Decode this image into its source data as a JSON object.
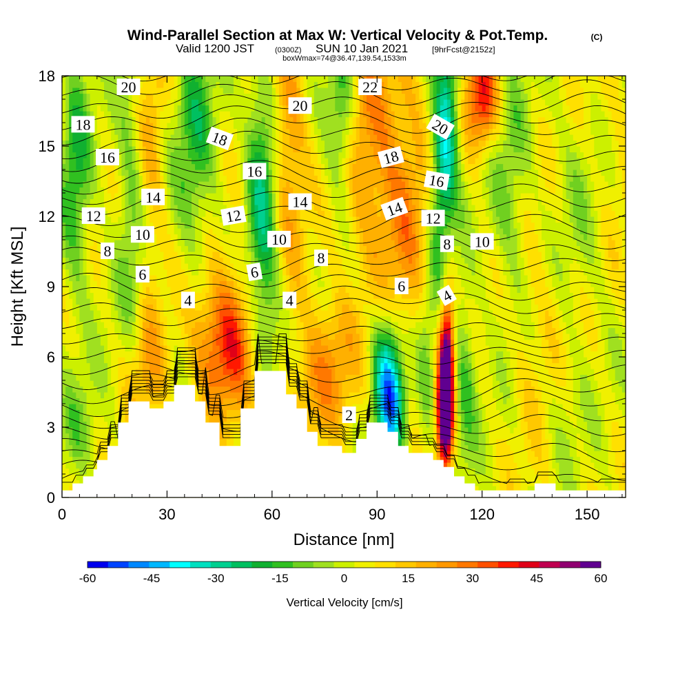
{
  "header": {
    "title": "Wind-Parallel Section at Max W: Vertical Velocity & Pot.Temp.",
    "copyright": "(C)",
    "valid_prefix": "Valid 1200 JST",
    "valid_utc": "(0300Z)",
    "valid_date": "SUN 10 Jan 2021",
    "forecast": "[9hrFcst@2152z]",
    "box": "boxWmax=74@36.47,139.54,1533m"
  },
  "chart_data": {
    "type": "heatmap",
    "title": "Wind-Parallel Section at Max W: Vertical Velocity & Pot.Temp.",
    "xlabel": "Distance [nm]",
    "ylabel": "Height [Kft MSL]",
    "xlim": [
      0,
      161
    ],
    "ylim": [
      0,
      18
    ],
    "xticks": [
      "0",
      "30",
      "60",
      "90",
      "120",
      "150"
    ],
    "yticks": [
      "0",
      "3",
      "6",
      "9",
      "12",
      "15",
      "18"
    ],
    "colorbar": {
      "label": "Vertical Velocity [cm/s]",
      "ticks": [
        "-60",
        "-45",
        "-30",
        "-15",
        "0",
        "15",
        "30",
        "45",
        "60"
      ],
      "range": [
        -60,
        60
      ],
      "step": 5,
      "colors": [
        "#0000ee",
        "#0044ff",
        "#0088ff",
        "#00b8ff",
        "#00ffff",
        "#00e0c0",
        "#00d090",
        "#00c060",
        "#10b030",
        "#30c020",
        "#70d020",
        "#a0e020",
        "#ccf000",
        "#f0f000",
        "#ffe000",
        "#ffc800",
        "#ffb000",
        "#ff9800",
        "#ff7800",
        "#ff5000",
        "#ff1800",
        "#e00018",
        "#c00050",
        "#900070",
        "#600090"
      ]
    },
    "terrain": [
      [
        0,
        0.3
      ],
      [
        3,
        0.3
      ],
      [
        3,
        0.6
      ],
      [
        6,
        0.6
      ],
      [
        6,
        0.9
      ],
      [
        9,
        0.9
      ],
      [
        9,
        1.2
      ],
      [
        10,
        1.2
      ],
      [
        10,
        1.6
      ],
      [
        13,
        1.6
      ],
      [
        13,
        2.2
      ],
      [
        16,
        2.2
      ],
      [
        16,
        3.2
      ],
      [
        19,
        3.2
      ],
      [
        19,
        4.1
      ],
      [
        25,
        4.1
      ],
      [
        25,
        3.8
      ],
      [
        29,
        3.8
      ],
      [
        29,
        4.1
      ],
      [
        32,
        4.1
      ],
      [
        32,
        4.8
      ],
      [
        38,
        4.8
      ],
      [
        38,
        4.1
      ],
      [
        41,
        4.1
      ],
      [
        41,
        3.2
      ],
      [
        45,
        3.2
      ],
      [
        45,
        2.2
      ],
      [
        51,
        2.2
      ],
      [
        51,
        3.8
      ],
      [
        55,
        3.8
      ],
      [
        55,
        5.4
      ],
      [
        64,
        5.4
      ],
      [
        64,
        4.4
      ],
      [
        67,
        4.4
      ],
      [
        67,
        3.8
      ],
      [
        70,
        3.8
      ],
      [
        70,
        2.8
      ],
      [
        73,
        2.8
      ],
      [
        73,
        2.2
      ],
      [
        80,
        2.2
      ],
      [
        80,
        1.9
      ],
      [
        84,
        1.9
      ],
      [
        84,
        2.5
      ],
      [
        87,
        2.5
      ],
      [
        87,
        3.2
      ],
      [
        93,
        3.2
      ],
      [
        93,
        2.8
      ],
      [
        96,
        2.8
      ],
      [
        96,
        2.2
      ],
      [
        99,
        2.2
      ],
      [
        99,
        1.9
      ],
      [
        106,
        1.9
      ],
      [
        106,
        1.6
      ],
      [
        109,
        1.6
      ],
      [
        109,
        1.3
      ],
      [
        112,
        1.3
      ],
      [
        112,
        0.9
      ],
      [
        115,
        0.9
      ],
      [
        115,
        0.6
      ],
      [
        118,
        0.6
      ],
      [
        118,
        0.3
      ],
      [
        135,
        0.3
      ],
      [
        135,
        0.6
      ],
      [
        141,
        0.6
      ],
      [
        141,
        0.3
      ],
      [
        161,
        0.3
      ]
    ],
    "updrafts": [
      {
        "x": 110,
        "y": 5.5,
        "w": 60,
        "sx": 1.5,
        "sy": 2.6
      },
      {
        "x": 109,
        "y": 3.5,
        "w": 45,
        "sx": 1.5,
        "sy": 1.8
      },
      {
        "x": 44,
        "y": 6.5,
        "w": 30,
        "sx": 5,
        "sy": 2
      },
      {
        "x": 50,
        "y": 7,
        "w": 18,
        "sx": 4,
        "sy": 2.5
      },
      {
        "x": 77,
        "y": 6,
        "w": 20,
        "sx": 5,
        "sy": 2
      },
      {
        "x": 70,
        "y": 4.5,
        "w": 14,
        "sx": 4,
        "sy": 1.8
      },
      {
        "x": 120,
        "y": 17,
        "w": 38,
        "sx": 3.5,
        "sy": 1.6
      },
      {
        "x": 97,
        "y": 13,
        "w": 22,
        "sx": 6,
        "sy": 5
      },
      {
        "x": 86,
        "y": 15,
        "w": 18,
        "sx": 5,
        "sy": 4
      },
      {
        "x": 65,
        "y": 15,
        "w": 22,
        "sx": 3.5,
        "sy": 4
      },
      {
        "x": 25,
        "y": 14,
        "w": 15,
        "sx": 3,
        "sy": 5
      },
      {
        "x": 24,
        "y": 5,
        "w": 15,
        "sx": 4,
        "sy": 2
      },
      {
        "x": 138,
        "y": 7,
        "w": 10,
        "sx": 8,
        "sy": 4
      },
      {
        "x": 155,
        "y": 15,
        "w": 8,
        "sx": 8,
        "sy": 4
      }
    ],
    "downdrafts": [
      {
        "x": 94,
        "y": 4,
        "w": -45,
        "sx": 2.8,
        "sy": 1.8
      },
      {
        "x": 92,
        "y": 6,
        "w": -24,
        "sx": 3,
        "sy": 2
      },
      {
        "x": 110,
        "y": 16,
        "w": -38,
        "sx": 2.5,
        "sy": 2.5
      },
      {
        "x": 108,
        "y": 12,
        "w": -22,
        "sx": 2.5,
        "sy": 3
      },
      {
        "x": 115,
        "y": 5,
        "w": -18,
        "sx": 2.5,
        "sy": 2.5
      },
      {
        "x": 104,
        "y": 5,
        "w": -14,
        "sx": 2,
        "sy": 2.5
      },
      {
        "x": 57,
        "y": 13,
        "w": -28,
        "sx": 3,
        "sy": 4
      },
      {
        "x": 60,
        "y": 7.5,
        "w": -12,
        "sx": 3,
        "sy": 2
      },
      {
        "x": 80,
        "y": 16.5,
        "w": -26,
        "sx": 3,
        "sy": 2.5
      },
      {
        "x": 38,
        "y": 15.5,
        "w": -20,
        "sx": 4,
        "sy": 3.5
      },
      {
        "x": 20,
        "y": 13,
        "w": -15,
        "sx": 3,
        "sy": 5
      },
      {
        "x": 4,
        "y": 14,
        "w": -20,
        "sx": 3,
        "sy": 4
      },
      {
        "x": 128,
        "y": 13,
        "w": -14,
        "sx": 4,
        "sy": 4
      },
      {
        "x": 148,
        "y": 12,
        "w": -12,
        "sx": 6,
        "sy": 4
      },
      {
        "x": 143,
        "y": 4,
        "w": -10,
        "sx": 4,
        "sy": 2
      },
      {
        "x": 5,
        "y": 3,
        "w": -10,
        "sx": 4,
        "sy": 1.5
      }
    ],
    "contour_labels": [
      {
        "text": "20",
        "x": 19,
        "y": 17.5,
        "rot": 0
      },
      {
        "text": "22",
        "x": 88,
        "y": 17.5,
        "rot": 0
      },
      {
        "text": "18",
        "x": 6,
        "y": 15.9,
        "rot": 0
      },
      {
        "text": "20",
        "x": 68,
        "y": 16.7,
        "rot": 0
      },
      {
        "text": "18",
        "x": 45,
        "y": 15.3,
        "rot": 20
      },
      {
        "text": "20",
        "x": 108,
        "y": 15.8,
        "rot": 30
      },
      {
        "text": "18",
        "x": 94,
        "y": 14.5,
        "rot": -15
      },
      {
        "text": "16",
        "x": 13,
        "y": 14.5,
        "rot": 0
      },
      {
        "text": "16",
        "x": 55,
        "y": 13.9,
        "rot": 0
      },
      {
        "text": "16",
        "x": 107,
        "y": 13.5,
        "rot": 10
      },
      {
        "text": "14",
        "x": 26,
        "y": 12.8,
        "rot": 0
      },
      {
        "text": "14",
        "x": 68,
        "y": 12.6,
        "rot": 0
      },
      {
        "text": "14",
        "x": 95,
        "y": 12.3,
        "rot": -20
      },
      {
        "text": "12",
        "x": 9,
        "y": 12.0,
        "rot": 0
      },
      {
        "text": "12",
        "x": 49,
        "y": 12.0,
        "rot": -10
      },
      {
        "text": "12",
        "x": 106,
        "y": 11.9,
        "rot": 0
      },
      {
        "text": "10",
        "x": 23,
        "y": 11.2,
        "rot": 0
      },
      {
        "text": "10",
        "x": 62,
        "y": 11.0,
        "rot": 0
      },
      {
        "text": "10",
        "x": 120,
        "y": 10.9,
        "rot": 0
      },
      {
        "text": "8",
        "x": 13,
        "y": 10.5,
        "rot": 0
      },
      {
        "text": "8",
        "x": 74,
        "y": 10.2,
        "rot": 0
      },
      {
        "text": "8",
        "x": 110,
        "y": 10.8,
        "rot": 0
      },
      {
        "text": "6",
        "x": 23,
        "y": 9.5,
        "rot": 0
      },
      {
        "text": "6",
        "x": 55,
        "y": 9.6,
        "rot": -10
      },
      {
        "text": "6",
        "x": 97,
        "y": 9.0,
        "rot": 0
      },
      {
        "text": "4",
        "x": 36,
        "y": 8.4,
        "rot": 0
      },
      {
        "text": "4",
        "x": 65,
        "y": 8.4,
        "rot": 0
      },
      {
        "text": "4",
        "x": 110,
        "y": 8.6,
        "rot": -30
      },
      {
        "text": "2",
        "x": 82,
        "y": 3.5,
        "rot": 0
      }
    ]
  }
}
